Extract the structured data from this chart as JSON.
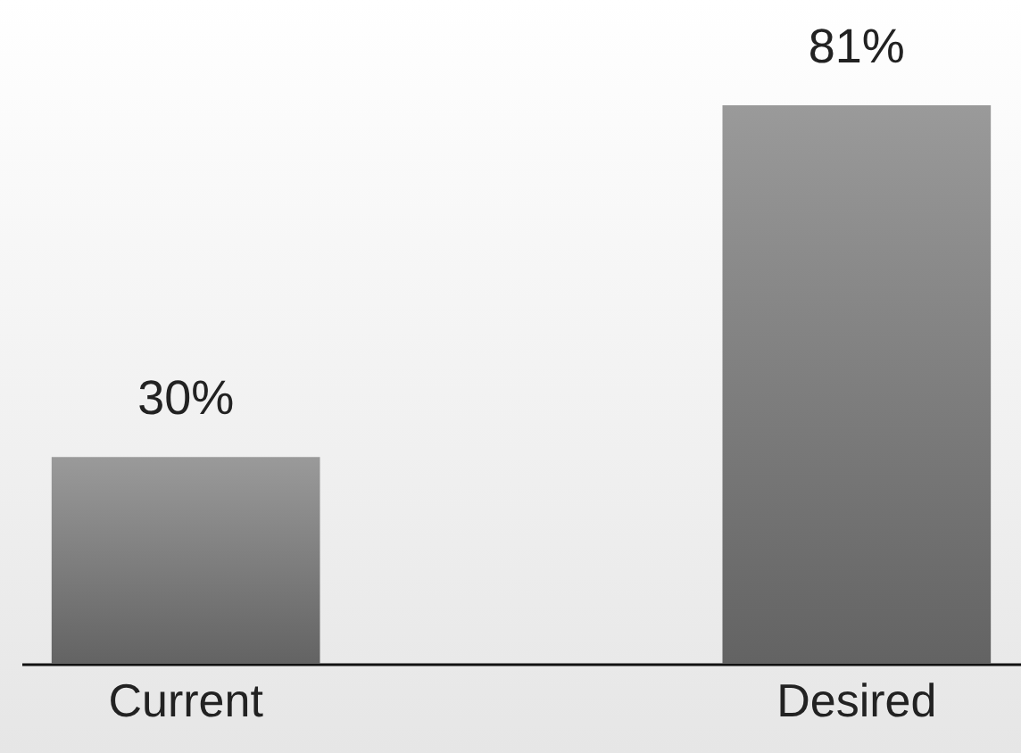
{
  "chart_data": {
    "type": "bar",
    "categories": [
      "Current",
      "Desired"
    ],
    "values": [
      30,
      81
    ],
    "value_labels": [
      "30%",
      "81%"
    ],
    "color": "#7f7f7f"
  }
}
